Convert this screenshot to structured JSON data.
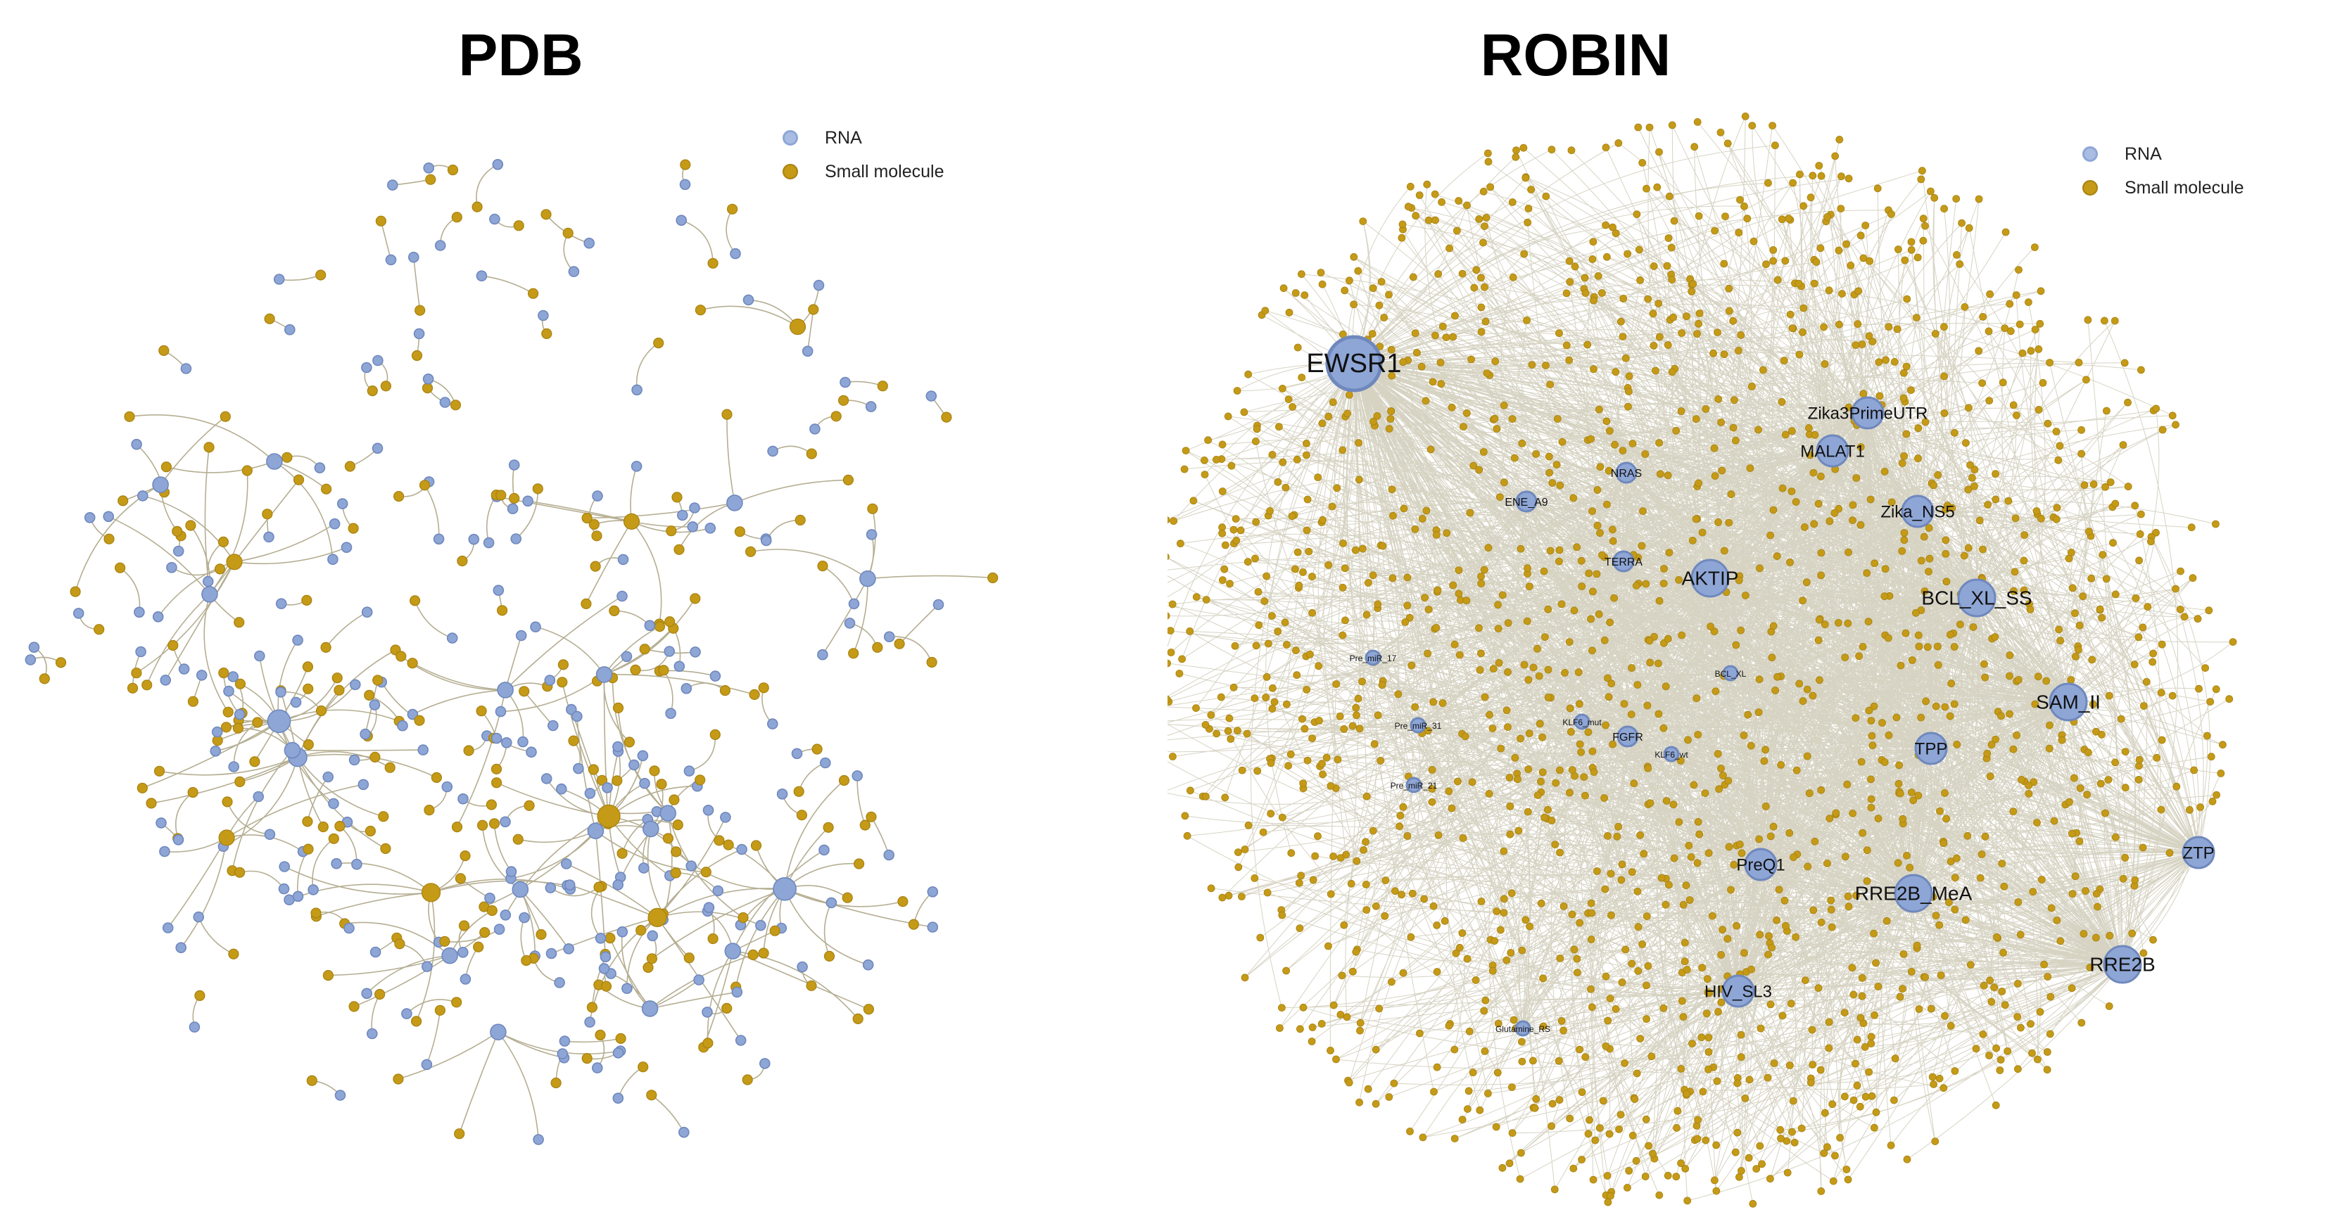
{
  "pdb": {
    "title": "PDB",
    "legend": {
      "rna": "RNA",
      "small_molecule": "Small molecule"
    }
  },
  "robin": {
    "title": "ROBIN",
    "legend": {
      "rna": "RNA",
      "small_molecule": "Small molecule"
    },
    "rna_nodes": [
      {
        "label": "EWSR1",
        "size": "xl"
      },
      {
        "label": "Zika3PrimeUTR",
        "size": "m"
      },
      {
        "label": "MALAT1",
        "size": "m"
      },
      {
        "label": "ENE_A9",
        "size": "xs"
      },
      {
        "label": "NRAS",
        "size": "xs"
      },
      {
        "label": "Zika_NS5",
        "size": "m"
      },
      {
        "label": "TERRA",
        "size": "xs"
      },
      {
        "label": "AKTIP",
        "size": "l"
      },
      {
        "label": "BCL_XL_SS",
        "size": "l"
      },
      {
        "label": "Pre_miR_17",
        "size": "xxs"
      },
      {
        "label": "BCL_XL",
        "size": "xxs"
      },
      {
        "label": "SAM_II",
        "size": "l"
      },
      {
        "label": "Pre_miR_31",
        "size": "xxs"
      },
      {
        "label": "KLF6_mut",
        "size": "xxs"
      },
      {
        "label": "FGFR",
        "size": "xs"
      },
      {
        "label": "KLF6_wt",
        "size": "xxs"
      },
      {
        "label": "TPP",
        "size": "m"
      },
      {
        "label": "Pre_miR_21",
        "size": "xxs"
      },
      {
        "label": "ZTP",
        "size": "m"
      },
      {
        "label": "PreQ1",
        "size": "m"
      },
      {
        "label": "RRE2B_MeA",
        "size": "l"
      },
      {
        "label": "RRE2B",
        "size": "l"
      },
      {
        "label": "HIV_SL3",
        "size": "m"
      },
      {
        "label": "Glutamine_RS",
        "size": "xxs"
      }
    ]
  },
  "colors": {
    "rna_fill": "#8ea6d6",
    "rna_stroke": "#6f88bd",
    "small_molecule_fill": "#c49a17",
    "small_molecule_stroke": "#a88110",
    "edge": "#b5ae92"
  }
}
